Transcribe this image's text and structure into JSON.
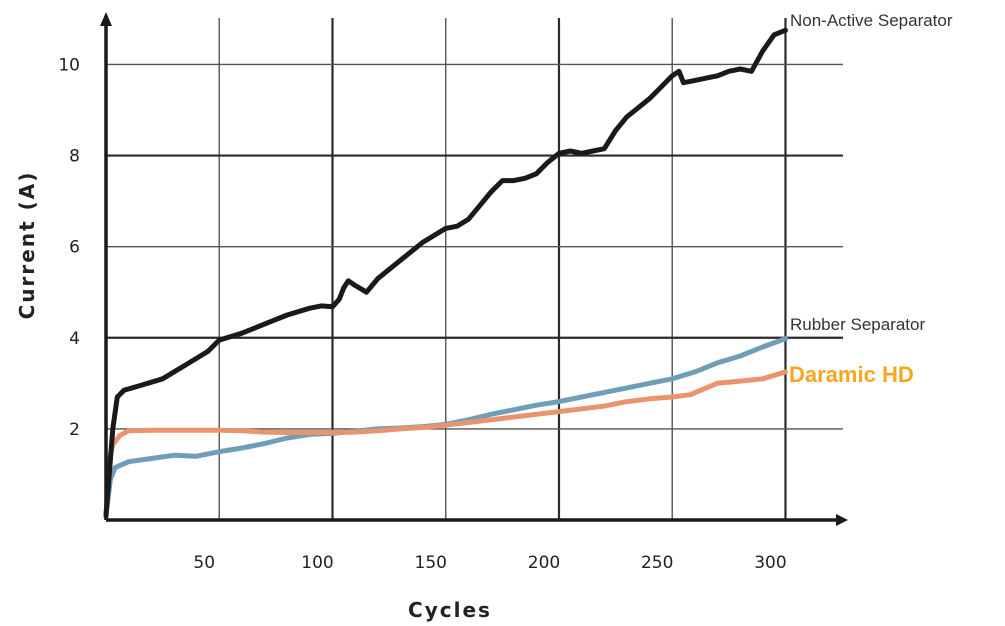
{
  "chart_data": {
    "type": "line",
    "title": "",
    "xlabel": "Cycles",
    "ylabel": "Current (A)",
    "xlim": [
      0,
      302
    ],
    "ylim": [
      0,
      10.8
    ],
    "x_ticks": [
      50,
      100,
      150,
      200,
      250,
      300
    ],
    "y_ticks": [
      2,
      4,
      6,
      8,
      10
    ],
    "grid": true,
    "series": [
      {
        "name": "Non-Active Separator",
        "color": "#1a1a1a",
        "x": [
          0,
          3,
          5,
          8,
          15,
          25,
          35,
          45,
          50,
          60,
          70,
          80,
          90,
          95,
          100,
          103,
          105,
          107,
          110,
          115,
          120,
          130,
          140,
          150,
          155,
          160,
          165,
          170,
          175,
          180,
          185,
          190,
          195,
          200,
          205,
          210,
          215,
          220,
          225,
          230,
          235,
          240,
          245,
          250,
          253,
          255,
          260,
          265,
          270,
          275,
          280,
          285,
          290,
          295,
          300
        ],
        "y": [
          0.1,
          2.0,
          2.7,
          2.85,
          2.95,
          3.1,
          3.4,
          3.7,
          3.95,
          4.1,
          4.3,
          4.5,
          4.65,
          4.7,
          4.68,
          4.85,
          5.1,
          5.25,
          5.15,
          5.0,
          5.3,
          5.7,
          6.1,
          6.4,
          6.45,
          6.6,
          6.9,
          7.2,
          7.45,
          7.45,
          7.5,
          7.6,
          7.85,
          8.05,
          8.1,
          8.05,
          8.1,
          8.15,
          8.55,
          8.85,
          9.05,
          9.25,
          9.5,
          9.75,
          9.85,
          9.6,
          9.65,
          9.7,
          9.75,
          9.85,
          9.9,
          9.85,
          10.3,
          10.65,
          10.75
        ]
      },
      {
        "name": "Rubber Separator",
        "color": "#6f9fb8",
        "x": [
          0,
          2,
          4,
          10,
          20,
          30,
          40,
          50,
          60,
          70,
          80,
          90,
          100,
          110,
          120,
          130,
          140,
          150,
          160,
          170,
          180,
          190,
          200,
          210,
          220,
          230,
          240,
          250,
          260,
          270,
          280,
          290,
          300
        ],
        "y": [
          0.1,
          0.9,
          1.15,
          1.28,
          1.35,
          1.42,
          1.4,
          1.5,
          1.58,
          1.68,
          1.8,
          1.88,
          1.9,
          1.95,
          2.0,
          2.02,
          2.05,
          2.1,
          2.2,
          2.32,
          2.42,
          2.52,
          2.6,
          2.7,
          2.8,
          2.9,
          3.0,
          3.1,
          3.25,
          3.45,
          3.6,
          3.8,
          3.98
        ]
      },
      {
        "name": "Daramic HD",
        "color": "#e8956e",
        "x": [
          0,
          1,
          3,
          6,
          10,
          20,
          30,
          40,
          50,
          60,
          70,
          80,
          90,
          100,
          110,
          120,
          130,
          140,
          150,
          160,
          170,
          180,
          190,
          200,
          210,
          220,
          230,
          240,
          250,
          258,
          265,
          270,
          280,
          290,
          300
        ],
        "y": [
          0.05,
          1.25,
          1.65,
          1.85,
          1.96,
          1.97,
          1.97,
          1.97,
          1.97,
          1.96,
          1.93,
          1.92,
          1.92,
          1.92,
          1.93,
          1.96,
          2.0,
          2.03,
          2.08,
          2.14,
          2.2,
          2.26,
          2.32,
          2.38,
          2.44,
          2.5,
          2.6,
          2.66,
          2.7,
          2.75,
          2.9,
          3.0,
          3.05,
          3.1,
          3.25
        ]
      }
    ],
    "label_colors": {
      "Non-Active Separator": "#333333",
      "Rubber Separator": "#333333",
      "Daramic HD": "#f5a623"
    }
  }
}
